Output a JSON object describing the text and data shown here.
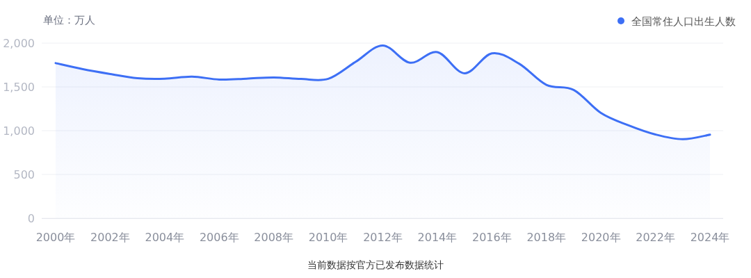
{
  "chart_data": {
    "type": "area",
    "ylabel": "单位：万人",
    "categories": [
      "2000年",
      null,
      "2002年",
      null,
      "2004年",
      null,
      "2006年",
      null,
      "2008年",
      null,
      "2010年",
      null,
      "2012年",
      null,
      "2014年",
      null,
      "2016年",
      null,
      "2018年",
      null,
      "2020年",
      null,
      "2022年",
      null,
      "2024年"
    ],
    "series": [
      {
        "name": "全国常住人口出生人数",
        "color": "#3d6ff5",
        "values": [
          1771,
          1702,
          1647,
          1599,
          1593,
          1617,
          1584,
          1594,
          1608,
          1591,
          1592,
          1785,
          1973,
          1776,
          1897,
          1655,
          1883,
          1765,
          1523,
          1465,
          1202,
          1062,
          956,
          902,
          954
        ]
      }
    ],
    "ylim": [
      0,
      2000
    ],
    "yticks": [
      0,
      500,
      {
        "value": 1000,
        "label": "1,000"
      },
      {
        "value": 1500,
        "label": "1,500"
      },
      {
        "value": 2000,
        "label": "2,000"
      }
    ],
    "grid": "y",
    "legend": "top right",
    "annotations": [
      "当前数据按官方已发布数据统计"
    ]
  }
}
